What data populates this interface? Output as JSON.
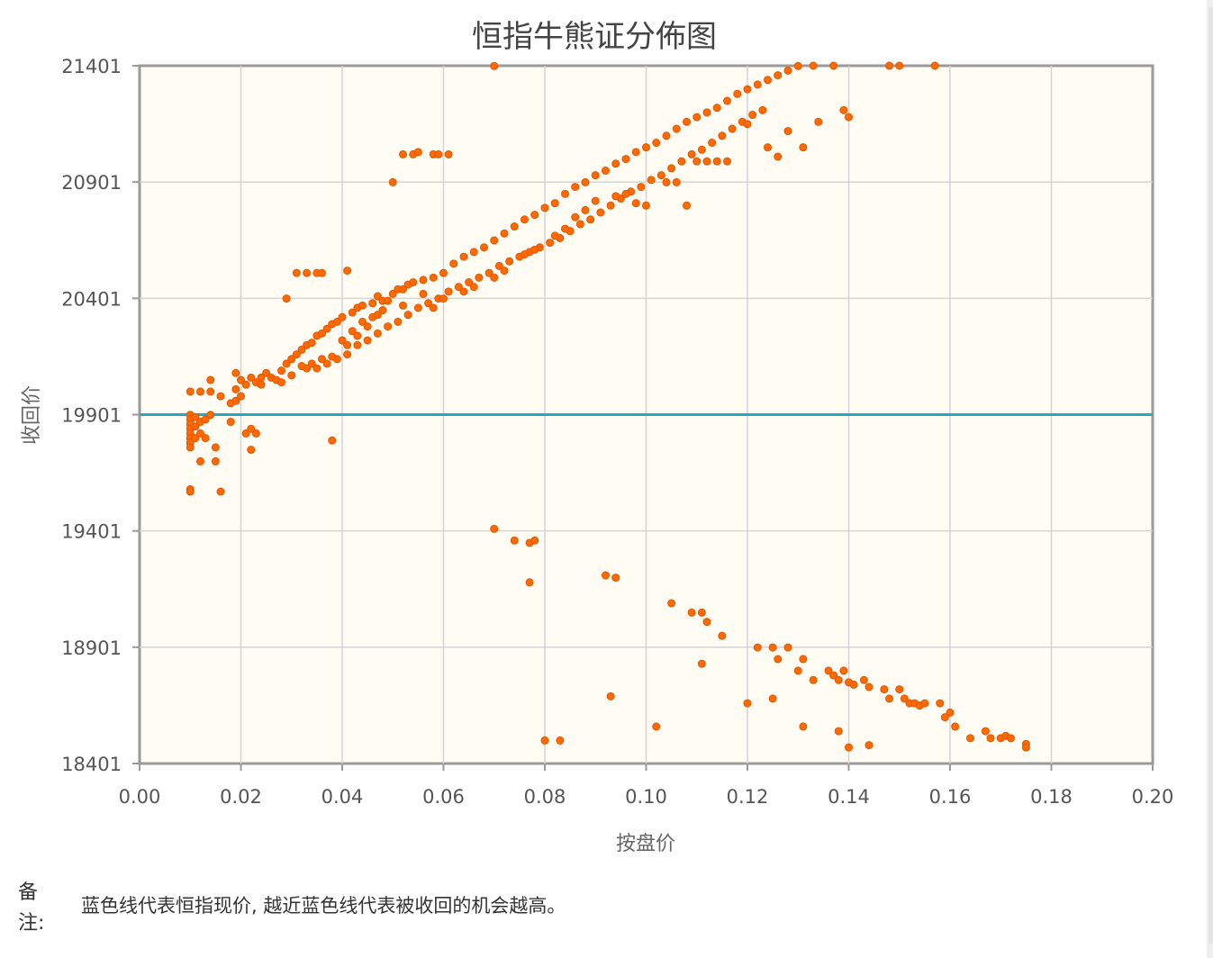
{
  "chart_data": {
    "type": "scatter",
    "title": "恒指牛熊证分佈图",
    "xlabel": "按盘价",
    "ylabel": "收回价",
    "xlim": [
      0,
      0.2
    ],
    "ylim": [
      18401,
      21401
    ],
    "x_ticks": [
      "0.00",
      "0.02",
      "0.04",
      "0.06",
      "0.08",
      "0.10",
      "0.12",
      "0.14",
      "0.16",
      "0.18",
      "0.20"
    ],
    "y_ticks": [
      "21401",
      "20901",
      "20401",
      "19901",
      "19401",
      "18901",
      "18401"
    ],
    "grid": true,
    "reference_line": {
      "y": 19901,
      "color": "#2aa6c4"
    },
    "point_color": "#ff6a00",
    "series_bull": [
      [
        0.01,
        19900
      ],
      [
        0.01,
        19880
      ],
      [
        0.01,
        19860
      ],
      [
        0.01,
        19840
      ],
      [
        0.01,
        19820
      ],
      [
        0.01,
        19800
      ],
      [
        0.01,
        19780
      ],
      [
        0.01,
        19760
      ],
      [
        0.011,
        19890
      ],
      [
        0.011,
        19850
      ],
      [
        0.011,
        19800
      ],
      [
        0.012,
        19870
      ],
      [
        0.012,
        19820
      ],
      [
        0.013,
        19880
      ],
      [
        0.013,
        19800
      ],
      [
        0.014,
        19900
      ],
      [
        0.015,
        19760
      ],
      [
        0.015,
        19700
      ],
      [
        0.012,
        19700
      ],
      [
        0.01,
        19580
      ],
      [
        0.01,
        19570
      ],
      [
        0.016,
        19570
      ],
      [
        0.021,
        19820
      ],
      [
        0.022,
        19840
      ],
      [
        0.023,
        19820
      ],
      [
        0.022,
        19750
      ],
      [
        0.018,
        19870
      ],
      [
        0.038,
        19790
      ],
      [
        0.01,
        20000
      ],
      [
        0.012,
        20000
      ],
      [
        0.014,
        20000
      ],
      [
        0.014,
        20050
      ],
      [
        0.016,
        19980
      ],
      [
        0.018,
        19950
      ],
      [
        0.019,
        19960
      ],
      [
        0.02,
        19980
      ],
      [
        0.019,
        20010
      ],
      [
        0.021,
        20030
      ],
      [
        0.022,
        20060
      ],
      [
        0.023,
        20040
      ],
      [
        0.024,
        20060
      ],
      [
        0.025,
        20080
      ],
      [
        0.026,
        20060
      ],
      [
        0.019,
        20080
      ],
      [
        0.02,
        20050
      ],
      [
        0.024,
        20030
      ],
      [
        0.027,
        20050
      ],
      [
        0.028,
        20090
      ],
      [
        0.029,
        20120
      ],
      [
        0.03,
        20140
      ],
      [
        0.031,
        20160
      ],
      [
        0.032,
        20180
      ],
      [
        0.033,
        20200
      ],
      [
        0.034,
        20210
      ],
      [
        0.035,
        20240
      ],
      [
        0.036,
        20250
      ],
      [
        0.037,
        20270
      ],
      [
        0.038,
        20290
      ],
      [
        0.039,
        20300
      ],
      [
        0.04,
        20320
      ],
      [
        0.042,
        20340
      ],
      [
        0.043,
        20360
      ],
      [
        0.044,
        20370
      ],
      [
        0.046,
        20380
      ],
      [
        0.047,
        20410
      ],
      [
        0.048,
        20390
      ],
      [
        0.05,
        20420
      ],
      [
        0.051,
        20440
      ],
      [
        0.053,
        20460
      ],
      [
        0.054,
        20470
      ],
      [
        0.056,
        20480
      ],
      [
        0.058,
        20490
      ],
      [
        0.06,
        20510
      ],
      [
        0.062,
        20550
      ],
      [
        0.064,
        20580
      ],
      [
        0.066,
        20600
      ],
      [
        0.068,
        20620
      ],
      [
        0.07,
        20650
      ],
      [
        0.072,
        20680
      ],
      [
        0.074,
        20710
      ],
      [
        0.076,
        20740
      ],
      [
        0.078,
        20760
      ],
      [
        0.08,
        20790
      ],
      [
        0.082,
        20810
      ],
      [
        0.084,
        20850
      ],
      [
        0.086,
        20880
      ],
      [
        0.088,
        20900
      ],
      [
        0.09,
        20930
      ],
      [
        0.092,
        20950
      ],
      [
        0.094,
        20980
      ],
      [
        0.096,
        21000
      ],
      [
        0.098,
        21030
      ],
      [
        0.1,
        21050
      ],
      [
        0.102,
        21070
      ],
      [
        0.104,
        21100
      ],
      [
        0.106,
        21130
      ],
      [
        0.108,
        21160
      ],
      [
        0.11,
        21180
      ],
      [
        0.112,
        21200
      ],
      [
        0.114,
        21220
      ],
      [
        0.116,
        21250
      ],
      [
        0.118,
        21280
      ],
      [
        0.12,
        21300
      ],
      [
        0.122,
        21320
      ],
      [
        0.124,
        21340
      ],
      [
        0.126,
        21360
      ],
      [
        0.128,
        21380
      ],
      [
        0.13,
        21400
      ],
      [
        0.133,
        21401
      ],
      [
        0.137,
        21401
      ],
      [
        0.148,
        21401
      ],
      [
        0.15,
        21401
      ],
      [
        0.157,
        21401
      ],
      [
        0.033,
        20100
      ],
      [
        0.035,
        20100
      ],
      [
        0.037,
        20120
      ],
      [
        0.039,
        20140
      ],
      [
        0.041,
        20160
      ],
      [
        0.043,
        20200
      ],
      [
        0.045,
        20220
      ],
      [
        0.047,
        20250
      ],
      [
        0.049,
        20280
      ],
      [
        0.051,
        20300
      ],
      [
        0.053,
        20330
      ],
      [
        0.055,
        20360
      ],
      [
        0.057,
        20380
      ],
      [
        0.059,
        20400
      ],
      [
        0.061,
        20430
      ],
      [
        0.063,
        20450
      ],
      [
        0.065,
        20470
      ],
      [
        0.067,
        20490
      ],
      [
        0.069,
        20510
      ],
      [
        0.071,
        20540
      ],
      [
        0.073,
        20560
      ],
      [
        0.075,
        20580
      ],
      [
        0.077,
        20600
      ],
      [
        0.079,
        20620
      ],
      [
        0.081,
        20640
      ],
      [
        0.083,
        20660
      ],
      [
        0.085,
        20690
      ],
      [
        0.087,
        20720
      ],
      [
        0.089,
        20740
      ],
      [
        0.091,
        20770
      ],
      [
        0.093,
        20800
      ],
      [
        0.095,
        20830
      ],
      [
        0.097,
        20860
      ],
      [
        0.099,
        20880
      ],
      [
        0.101,
        20910
      ],
      [
        0.103,
        20930
      ],
      [
        0.105,
        20960
      ],
      [
        0.107,
        20990
      ],
      [
        0.109,
        21020
      ],
      [
        0.111,
        21040
      ],
      [
        0.113,
        21070
      ],
      [
        0.115,
        21100
      ],
      [
        0.117,
        21130
      ],
      [
        0.119,
        21160
      ],
      [
        0.121,
        21190
      ],
      [
        0.123,
        21210
      ],
      [
        0.04,
        20220
      ],
      [
        0.042,
        20260
      ],
      [
        0.044,
        20300
      ],
      [
        0.046,
        20320
      ],
      [
        0.048,
        20350
      ],
      [
        0.052,
        20370
      ],
      [
        0.056,
        20420
      ],
      [
        0.058,
        20360
      ],
      [
        0.06,
        20400
      ],
      [
        0.064,
        20430
      ],
      [
        0.066,
        20450
      ],
      [
        0.07,
        20490
      ],
      [
        0.072,
        20520
      ],
      [
        0.076,
        20590
      ],
      [
        0.078,
        20610
      ],
      [
        0.082,
        20670
      ],
      [
        0.084,
        20700
      ],
      [
        0.086,
        20750
      ],
      [
        0.088,
        20780
      ],
      [
        0.09,
        20820
      ],
      [
        0.094,
        20840
      ],
      [
        0.096,
        20850
      ],
      [
        0.098,
        20810
      ],
      [
        0.1,
        20800
      ],
      [
        0.104,
        20900
      ],
      [
        0.106,
        20900
      ],
      [
        0.108,
        20800
      ],
      [
        0.11,
        20990
      ],
      [
        0.112,
        20990
      ],
      [
        0.114,
        20990
      ],
      [
        0.116,
        20990
      ],
      [
        0.12,
        21150
      ],
      [
        0.124,
        21050
      ],
      [
        0.128,
        21120
      ],
      [
        0.131,
        21050
      ],
      [
        0.134,
        21160
      ],
      [
        0.139,
        21210
      ],
      [
        0.14,
        21180
      ],
      [
        0.126,
        21010
      ],
      [
        0.029,
        20400
      ],
      [
        0.031,
        20510
      ],
      [
        0.033,
        20510
      ],
      [
        0.035,
        20510
      ],
      [
        0.036,
        20510
      ],
      [
        0.041,
        20520
      ],
      [
        0.05,
        20900
      ],
      [
        0.052,
        21020
      ],
      [
        0.054,
        21020
      ],
      [
        0.055,
        21030
      ],
      [
        0.058,
        21020
      ],
      [
        0.059,
        21020
      ],
      [
        0.061,
        21020
      ],
      [
        0.07,
        21400
      ],
      [
        0.052,
        20440
      ],
      [
        0.049,
        20390
      ],
      [
        0.047,
        20330
      ],
      [
        0.045,
        20280
      ],
      [
        0.043,
        20240
      ],
      [
        0.041,
        20200
      ],
      [
        0.038,
        20150
      ],
      [
        0.036,
        20140
      ],
      [
        0.034,
        20120
      ],
      [
        0.032,
        20110
      ],
      [
        0.03,
        20070
      ],
      [
        0.028,
        20040
      ]
    ],
    "series_bear": [
      [
        0.07,
        19410
      ],
      [
        0.074,
        19360
      ],
      [
        0.077,
        19350
      ],
      [
        0.078,
        19360
      ],
      [
        0.077,
        19180
      ],
      [
        0.092,
        19210
      ],
      [
        0.094,
        19200
      ],
      [
        0.105,
        19090
      ],
      [
        0.109,
        19050
      ],
      [
        0.111,
        19050
      ],
      [
        0.112,
        19010
      ],
      [
        0.115,
        18950
      ],
      [
        0.111,
        18830
      ],
      [
        0.122,
        18900
      ],
      [
        0.125,
        18900
      ],
      [
        0.128,
        18900
      ],
      [
        0.126,
        18850
      ],
      [
        0.131,
        18850
      ],
      [
        0.13,
        18800
      ],
      [
        0.133,
        18760
      ],
      [
        0.136,
        18800
      ],
      [
        0.137,
        18780
      ],
      [
        0.138,
        18760
      ],
      [
        0.139,
        18800
      ],
      [
        0.14,
        18750
      ],
      [
        0.141,
        18740
      ],
      [
        0.143,
        18760
      ],
      [
        0.144,
        18730
      ],
      [
        0.147,
        18720
      ],
      [
        0.148,
        18680
      ],
      [
        0.15,
        18720
      ],
      [
        0.151,
        18680
      ],
      [
        0.152,
        18660
      ],
      [
        0.153,
        18660
      ],
      [
        0.154,
        18650
      ],
      [
        0.155,
        18660
      ],
      [
        0.158,
        18660
      ],
      [
        0.16,
        18620
      ],
      [
        0.161,
        18560
      ],
      [
        0.164,
        18510
      ],
      [
        0.167,
        18540
      ],
      [
        0.168,
        18510
      ],
      [
        0.17,
        18510
      ],
      [
        0.171,
        18520
      ],
      [
        0.172,
        18510
      ],
      [
        0.175,
        18485
      ],
      [
        0.175,
        18470
      ],
      [
        0.093,
        18690
      ],
      [
        0.102,
        18560
      ],
      [
        0.08,
        18500
      ],
      [
        0.083,
        18500
      ],
      [
        0.12,
        18660
      ],
      [
        0.125,
        18680
      ],
      [
        0.131,
        18560
      ],
      [
        0.138,
        18540
      ],
      [
        0.14,
        18470
      ],
      [
        0.144,
        18480
      ],
      [
        0.159,
        18600
      ]
    ]
  },
  "note": {
    "label": "备注:",
    "text": "蓝色线代表恒指现价, 越近蓝色线代表被收回的机会越高。"
  }
}
